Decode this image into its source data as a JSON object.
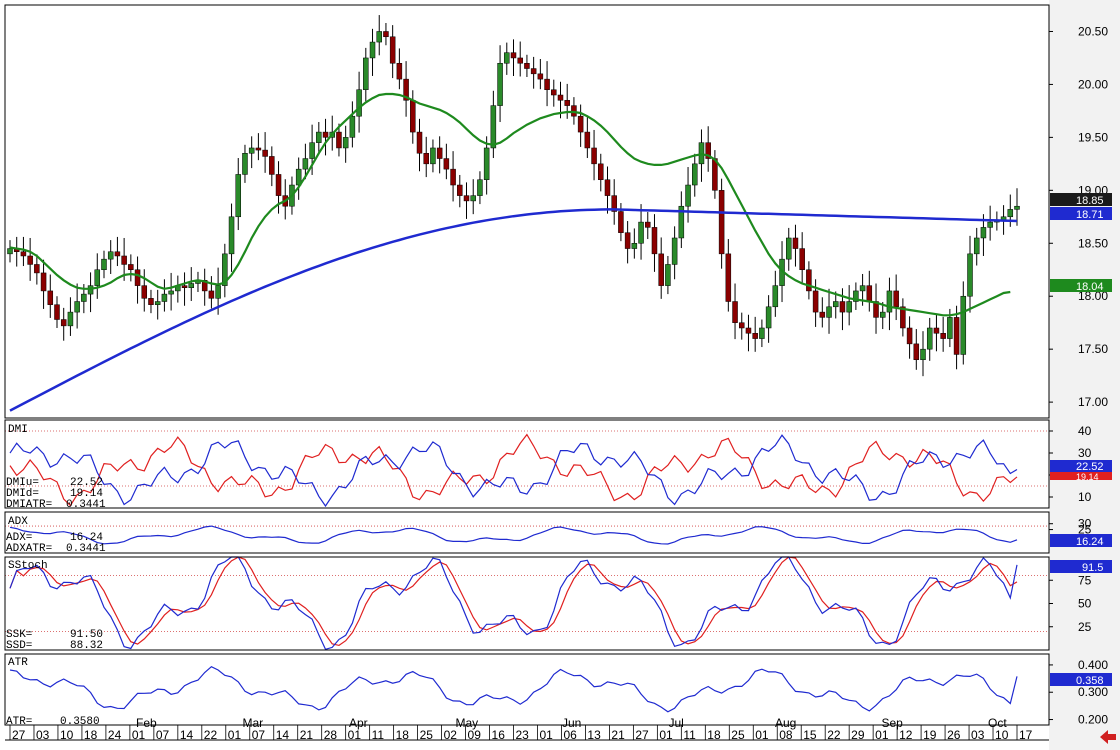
{
  "chart_data": [
    {
      "panel": "price",
      "type": "candlestick",
      "y_ticks": [
        "20.50",
        "20.00",
        "19.50",
        "19.00",
        "18.50",
        "18.00",
        "17.50",
        "17.00"
      ],
      "ylim": [
        16.85,
        20.75
      ],
      "close_series": [
        18.45,
        18.42,
        18.38,
        18.3,
        18.22,
        18.05,
        17.92,
        17.78,
        17.72,
        17.85,
        17.95,
        18.02,
        18.1,
        18.25,
        18.35,
        18.42,
        18.38,
        18.3,
        18.25,
        18.1,
        17.98,
        17.92,
        17.95,
        18.02,
        18.05,
        18.1,
        18.08,
        18.12,
        18.15,
        18.05,
        17.98,
        18.1,
        18.4,
        18.75,
        19.15,
        19.35,
        19.4,
        19.38,
        19.32,
        19.15,
        18.95,
        18.85,
        19.05,
        19.2,
        19.3,
        19.45,
        19.55,
        19.5,
        19.55,
        19.4,
        19.5,
        19.7,
        19.95,
        20.25,
        20.4,
        20.5,
        20.45,
        20.2,
        20.05,
        19.85,
        19.55,
        19.35,
        19.25,
        19.4,
        19.3,
        19.2,
        19.05,
        18.95,
        18.9,
        18.95,
        19.1,
        19.4,
        19.8,
        20.2,
        20.3,
        20.25,
        20.2,
        20.15,
        20.1,
        20.05,
        19.95,
        19.9,
        19.85,
        19.8,
        19.7,
        19.55,
        19.4,
        19.25,
        19.1,
        18.95,
        18.8,
        18.6,
        18.45,
        18.5,
        18.7,
        18.65,
        18.4,
        18.1,
        18.3,
        18.55,
        18.85,
        19.05,
        19.25,
        19.45,
        19.3,
        19.0,
        18.4,
        17.95,
        17.75,
        17.7,
        17.65,
        17.6,
        17.7,
        17.9,
        18.1,
        18.35,
        18.55,
        18.45,
        18.25,
        18.05,
        17.85,
        17.8,
        17.9,
        17.95,
        17.85,
        17.95,
        18.05,
        18.1,
        17.95,
        17.8,
        17.85,
        18.05,
        17.9,
        17.7,
        17.55,
        17.4,
        17.5,
        17.7,
        17.65,
        17.6,
        17.8,
        17.45,
        18.0,
        18.4,
        18.55,
        18.65,
        18.7,
        18.72,
        18.75,
        18.82,
        18.85
      ],
      "ma_short_series": [
        18.46,
        18.45,
        18.44,
        18.42,
        18.38,
        18.32,
        18.26,
        18.2,
        18.15,
        18.11,
        18.08,
        18.07,
        18.07,
        18.08,
        18.1,
        18.13,
        18.17,
        18.2,
        18.21,
        18.2,
        18.17,
        18.13,
        18.09,
        18.07,
        18.08,
        18.1,
        18.12,
        18.14,
        18.15,
        18.14,
        18.12,
        18.11,
        18.13,
        18.2,
        18.3,
        18.42,
        18.55,
        18.66,
        18.75,
        18.82,
        18.87,
        18.9,
        18.95,
        19.03,
        19.13,
        19.24,
        19.35,
        19.45,
        19.53,
        19.6,
        19.66,
        19.72,
        19.78,
        19.83,
        19.87,
        19.9,
        19.91,
        19.91,
        19.9,
        19.88,
        19.85,
        19.82,
        19.8,
        19.78,
        19.76,
        19.73,
        19.69,
        19.64,
        19.58,
        19.52,
        19.47,
        19.44,
        19.43,
        19.45,
        19.49,
        19.54,
        19.58,
        19.62,
        19.65,
        19.68,
        19.7,
        19.72,
        19.73,
        19.74,
        19.74,
        19.73,
        19.7,
        19.66,
        19.61,
        19.55,
        19.48,
        19.41,
        19.35,
        19.3,
        19.27,
        19.25,
        19.24,
        19.24,
        19.25,
        19.27,
        19.29,
        19.31,
        19.33,
        19.34,
        19.33,
        19.29,
        19.21,
        19.1,
        18.98,
        18.86,
        18.74,
        18.62,
        18.51,
        18.4,
        18.31,
        18.24,
        18.19,
        18.15,
        18.12,
        18.1,
        18.08,
        18.06,
        18.04,
        18.02,
        18.0,
        17.98,
        17.97,
        17.96,
        17.95,
        17.94,
        17.92,
        17.9,
        17.89,
        17.88,
        17.87,
        17.86,
        17.85,
        17.84,
        17.83,
        17.82,
        17.82,
        17.83,
        17.85,
        17.88,
        17.91,
        17.94,
        17.97,
        18.0,
        18.03,
        18.04
      ]
    },
    {
      "panel": "DMI",
      "type": "line",
      "y_ticks": [
        "40",
        "30",
        "20",
        "10"
      ],
      "ylim": [
        5,
        45
      ],
      "series": [
        {
          "name": "DMIu",
          "values": [
            22.52
          ]
        },
        {
          "name": "DMId",
          "values": [
            19.14
          ]
        }
      ]
    },
    {
      "panel": "ADX",
      "type": "line",
      "y_ticks": [
        "30",
        "25"
      ],
      "ylim": [
        5,
        40
      ],
      "series": [
        {
          "name": "ADX",
          "values": [
            16.24
          ]
        }
      ]
    },
    {
      "panel": "SStoch",
      "type": "line",
      "y_ticks": [
        "75",
        "50",
        "25"
      ],
      "ylim": [
        0,
        100
      ],
      "series": [
        {
          "name": "SSK",
          "values": [
            91.5
          ]
        },
        {
          "name": "SSD",
          "values": [
            88.32
          ]
        }
      ]
    },
    {
      "panel": "ATR",
      "type": "line",
      "y_ticks": [
        "0.400",
        "0.300",
        "0.200"
      ],
      "ylim": [
        0.18,
        0.44
      ],
      "series": [
        {
          "name": "ATR",
          "values": [
            0.358
          ]
        }
      ]
    }
  ],
  "x_axis": {
    "day_labels": [
      "27",
      "03",
      "10",
      "18",
      "24",
      "01",
      "07",
      "14",
      "22",
      "01",
      "07",
      "14",
      "21",
      "28",
      "01",
      "11",
      "18",
      "25",
      "02",
      "09",
      "16",
      "23",
      "01",
      "06",
      "13",
      "21",
      "27",
      "01",
      "11",
      "18",
      "25",
      "01",
      "08",
      "15",
      "22",
      "29",
      "01",
      "12",
      "19",
      "26",
      "03",
      "10",
      "17"
    ],
    "month_labels": [
      "Feb",
      "Mar",
      "Apr",
      "May",
      "Jun",
      "Jul",
      "Aug",
      "Sep",
      "Oct"
    ]
  },
  "badges": {
    "close": "18.85",
    "ma_long": "18.71",
    "ma_short": "18.04",
    "dmi_up": "22.52",
    "dmi_down": "19.14",
    "adx": "16.24",
    "ssk": "91.5",
    "atr": "0.358"
  },
  "panels": {
    "dmi": {
      "title": "DMI",
      "rows": [
        [
          "DMIu=",
          "22.52"
        ],
        [
          "DMId=",
          "19.14"
        ],
        [
          "DMIATR=",
          "0.3441"
        ]
      ]
    },
    "adx": {
      "title": "ADX",
      "rows": [
        [
          "ADX=",
          "16.24"
        ],
        [
          "ADXATR=",
          "0.3441"
        ]
      ]
    },
    "sstoch": {
      "title": "SStoch",
      "rows": [
        [
          "SSK=",
          "91.50"
        ],
        [
          "SSD=",
          "88.32"
        ]
      ]
    },
    "atr": {
      "title": "ATR",
      "rows": [
        [
          "ATR=",
          "0.3580"
        ]
      ]
    }
  },
  "colors": {
    "background": "#ffffff",
    "right_axis_bg": "#f2f2f2",
    "frame": "#000000",
    "grid_ref": "#d04040",
    "up_candle": "#2a8a2a",
    "down_candle": "#8b0000",
    "ma_short": "#1e8a1e",
    "ma_long": "#1f2ad0",
    "dmi_up": "#1f2ad0",
    "dmi_down": "#e02020",
    "badge_black": "#1a1a1a",
    "badge_blue": "#1f2ad0",
    "badge_green": "#1e8a1e",
    "arrow": "#d02020"
  },
  "nav": {
    "back_icon": "back-arrow-icon"
  }
}
